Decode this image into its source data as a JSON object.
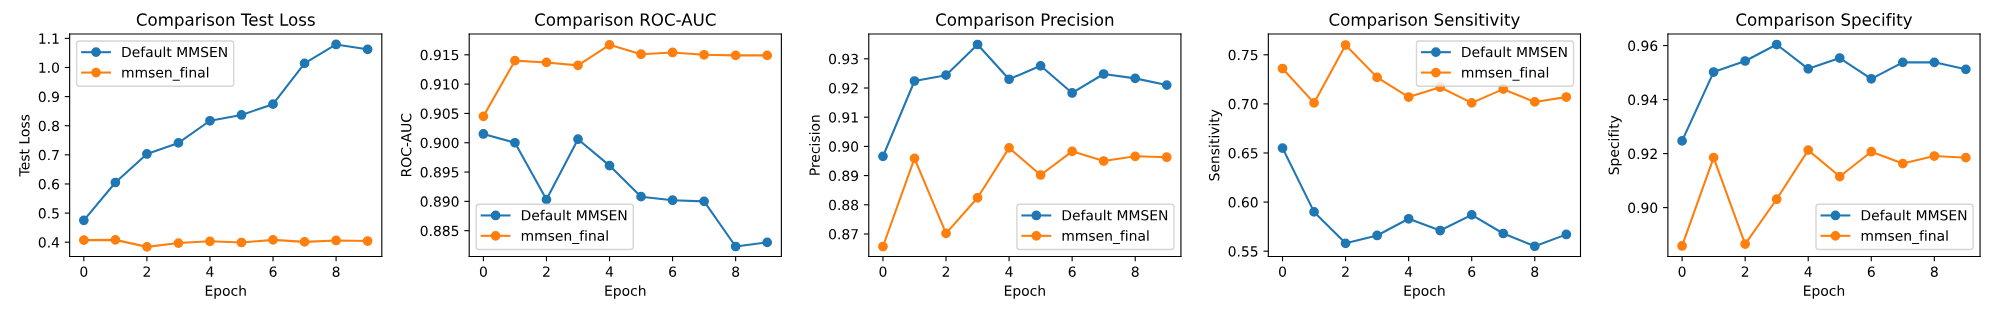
{
  "chart_data": [
    {
      "type": "line",
      "title": "Comparison Test Loss",
      "xlabel": "Epoch",
      "ylabel": "Test Loss",
      "x": [
        0,
        1,
        2,
        3,
        4,
        5,
        6,
        7,
        8,
        9
      ],
      "xlim": [
        -0.45,
        9.45
      ],
      "xticks": [
        0,
        2,
        4,
        6,
        8
      ],
      "ylim": [
        0.351,
        1.115
      ],
      "yticks": [
        {
          "value": 0.4,
          "label": "0.4"
        },
        {
          "value": 0.5,
          "label": "0.5"
        },
        {
          "value": 0.6,
          "label": "0.6"
        },
        {
          "value": 0.7,
          "label": "0.7"
        },
        {
          "value": 0.8,
          "label": "0.8"
        },
        {
          "value": 0.9,
          "label": "0.9"
        },
        {
          "value": 1.0,
          "label": "1.0"
        },
        {
          "value": 1.1,
          "label": "1.1"
        }
      ],
      "marker": "circle",
      "legend": "upper left",
      "series": [
        {
          "name": "Default MMSEN",
          "color": "#1f77b4",
          "values": [
            0.475,
            0.605,
            0.703,
            0.741,
            0.817,
            0.837,
            0.874,
            1.014,
            1.079,
            1.062
          ]
        },
        {
          "name": "mmsen_final",
          "color": "#ff7f0e",
          "values": [
            0.407,
            0.408,
            0.384,
            0.397,
            0.403,
            0.399,
            0.408,
            0.401,
            0.406,
            0.404
          ]
        }
      ]
    },
    {
      "type": "line",
      "title": "Comparison ROC-AUC",
      "xlabel": "Epoch",
      "ylabel": "ROC-AUC",
      "x": [
        0,
        1,
        2,
        3,
        4,
        5,
        6,
        7,
        8,
        9
      ],
      "xlim": [
        -0.45,
        9.45
      ],
      "xticks": [
        0,
        2,
        4,
        6,
        8
      ],
      "ylim": [
        0.8806,
        0.91855
      ],
      "yticks": [
        0.885,
        {
          "value": 0.89,
          "label": "0.890"
        },
        0.895,
        {
          "value": 0.9,
          "label": "0.900"
        },
        0.905,
        {
          "value": 0.91,
          "label": "0.910"
        },
        0.915
      ],
      "marker": "circle",
      "legend": "lower left",
      "series": [
        {
          "name": "Default MMSEN",
          "color": "#1f77b4",
          "values": [
            0.9015,
            0.9,
            0.8903,
            0.9006,
            0.8961,
            0.8908,
            0.8902,
            0.89,
            0.8823,
            0.883
          ]
        },
        {
          "name": "mmsen_final",
          "color": "#ff7f0e",
          "values": [
            0.9045,
            0.914,
            0.9137,
            0.9132,
            0.9167,
            0.9151,
            0.9154,
            0.915,
            0.9149,
            0.9149
          ]
        }
      ]
    },
    {
      "type": "line",
      "title": "Comparison Precision",
      "xlabel": "Epoch",
      "ylabel": "Precision",
      "x": [
        0,
        1,
        2,
        3,
        4,
        5,
        6,
        7,
        8,
        9
      ],
      "xlim": [
        -0.45,
        9.45
      ],
      "xticks": [
        0,
        2,
        4,
        6,
        8
      ],
      "ylim": [
        0.8623,
        0.9385
      ],
      "yticks": [
        0.87,
        0.88,
        0.89,
        {
          "value": 0.9,
          "label": "0.90"
        },
        0.91,
        0.92,
        0.93
      ],
      "marker": "circle",
      "legend": "lower right",
      "series": [
        {
          "name": "Default MMSEN",
          "color": "#1f77b4",
          "values": [
            0.8966,
            0.9224,
            0.9244,
            0.9349,
            0.923,
            0.9276,
            0.9183,
            0.9248,
            0.9233,
            0.921
          ]
        },
        {
          "name": "mmsen_final",
          "color": "#ff7f0e",
          "values": [
            0.8657,
            0.8959,
            0.8702,
            0.8824,
            0.8995,
            0.8902,
            0.8983,
            0.895,
            0.8966,
            0.8963
          ]
        }
      ]
    },
    {
      "type": "line",
      "title": "Comparison Sensitivity",
      "xlabel": "Epoch",
      "ylabel": "Sensitivity",
      "x": [
        0,
        1,
        2,
        3,
        4,
        5,
        6,
        7,
        8,
        9
      ],
      "xlim": [
        -0.45,
        9.45
      ],
      "xticks": [
        0,
        2,
        4,
        6,
        8
      ],
      "ylim": [
        0.5446,
        0.7712
      ],
      "yticks": [
        0.55,
        {
          "value": 0.6,
          "label": "0.60"
        },
        0.65,
        {
          "value": 0.7,
          "label": "0.70"
        },
        0.75
      ],
      "marker": "circle",
      "legend": "upper right",
      "series": [
        {
          "name": "Default MMSEN",
          "color": "#1f77b4",
          "values": [
            0.655,
            0.59,
            0.558,
            0.566,
            0.583,
            0.571,
            0.587,
            0.568,
            0.555,
            0.567
          ]
        },
        {
          "name": "mmsen_final",
          "color": "#ff7f0e",
          "values": [
            0.736,
            0.701,
            0.76,
            0.727,
            0.707,
            0.717,
            0.701,
            0.715,
            0.702,
            0.707
          ]
        }
      ]
    },
    {
      "type": "line",
      "title": "Comparison Specifity",
      "xlabel": "Epoch",
      "ylabel": "Specifity",
      "x": [
        0,
        1,
        2,
        3,
        4,
        5,
        6,
        7,
        8,
        9
      ],
      "xlim": [
        -0.45,
        9.45
      ],
      "xticks": [
        0,
        2,
        4,
        6,
        8
      ],
      "ylim": [
        0.8819,
        0.9643
      ],
      "yticks": [
        {
          "value": 0.9,
          "label": "0.90"
        },
        0.92,
        0.94,
        0.96
      ],
      "marker": "circle",
      "legend": "lower right",
      "series": [
        {
          "name": "Default MMSEN",
          "color": "#1f77b4",
          "values": [
            0.9247,
            0.9502,
            0.9543,
            0.9604,
            0.9514,
            0.9554,
            0.9477,
            0.9538,
            0.9538,
            0.9512
          ]
        },
        {
          "name": "mmsen_final",
          "color": "#ff7f0e",
          "values": [
            0.8858,
            0.9185,
            0.8865,
            0.9031,
            0.9213,
            0.9115,
            0.9207,
            0.9163,
            0.9191,
            0.9185
          ]
        }
      ]
    }
  ]
}
